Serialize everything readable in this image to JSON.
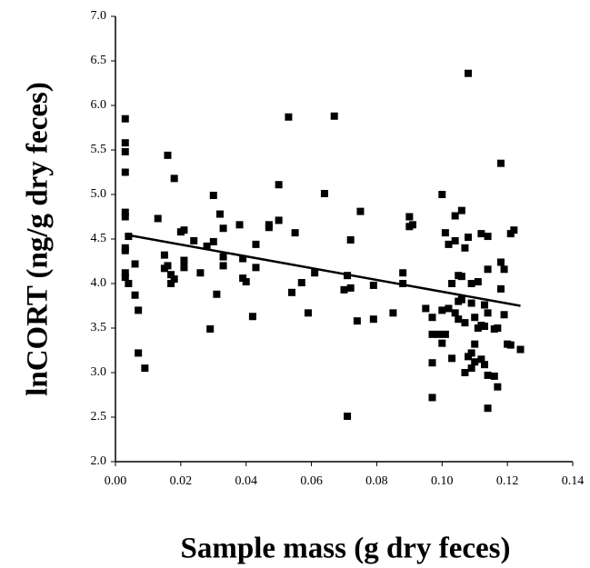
{
  "chart_data": {
    "type": "scatter",
    "x_label": "Sample mass (g dry feces)",
    "y_label": "lnCORT (ng/g dry feces)",
    "xlim": [
      0,
      0.14
    ],
    "ylim": [
      2,
      7
    ],
    "xticks": [
      {
        "value": 0,
        "label": "0.00"
      },
      {
        "value": 0.02,
        "label": "0.02"
      },
      {
        "value": 0.04,
        "label": "0.04"
      },
      {
        "value": 0.06,
        "label": "0.06"
      },
      {
        "value": 0.08,
        "label": "0.08"
      },
      {
        "value": 0.1,
        "label": "0.10"
      },
      {
        "value": 0.12,
        "label": "0.12"
      },
      {
        "value": 0.14,
        "label": "0.14"
      }
    ],
    "yticks": [
      {
        "value": 2,
        "label": "2.0"
      },
      {
        "value": 2.5,
        "label": "2.5"
      },
      {
        "value": 3,
        "label": "3.0"
      },
      {
        "value": 3.5,
        "label": "3.5"
      },
      {
        "value": 4,
        "label": "4.0"
      },
      {
        "value": 4.5,
        "label": "4.5"
      },
      {
        "value": 5,
        "label": "5.0"
      },
      {
        "value": 5.5,
        "label": "5.5"
      },
      {
        "value": 6,
        "label": "6.0"
      },
      {
        "value": 6.5,
        "label": "6.5"
      },
      {
        "value": 7,
        "label": "7.0"
      }
    ],
    "color": "#000000",
    "series": [
      {
        "color": "#000000",
        "x": [
          0.003,
          0.003,
          0.003,
          0.003,
          0.003,
          0.003,
          0.003,
          0.003,
          0.003,
          0.003,
          0.004,
          0.004,
          0.006,
          0.006,
          0.007,
          0.007,
          0.009,
          0.013,
          0.015,
          0.015,
          0.016,
          0.016,
          0.017,
          0.017,
          0.018,
          0.018,
          0.02,
          0.021,
          0.021,
          0.021,
          0.024,
          0.026,
          0.028,
          0.029,
          0.03,
          0.03,
          0.031,
          0.032,
          0.033,
          0.033,
          0.033,
          0.038,
          0.039,
          0.039,
          0.04,
          0.042,
          0.043,
          0.043,
          0.047,
          0.047,
          0.05,
          0.05,
          0.053,
          0.054,
          0.055,
          0.057,
          0.059,
          0.061,
          0.064,
          0.067,
          0.07,
          0.071,
          0.071,
          0.072,
          0.072,
          0.074,
          0.075,
          0.079,
          0.079,
          0.085,
          0.088,
          0.088,
          0.09,
          0.09,
          0.091,
          0.095,
          0.097,
          0.097,
          0.097,
          0.097,
          0.099,
          0.1,
          0.1,
          0.1,
          0.101,
          0.101,
          0.102,
          0.102,
          0.103,
          0.103,
          0.104,
          0.104,
          0.104,
          0.105,
          0.105,
          0.105,
          0.106,
          0.106,
          0.106,
          0.107,
          0.107,
          0.107,
          0.108,
          0.108,
          0.108,
          0.109,
          0.109,
          0.109,
          0.109,
          0.11,
          0.11,
          0.11,
          0.111,
          0.111,
          0.112,
          0.112,
          0.112,
          0.113,
          0.113,
          0.113,
          0.114,
          0.114,
          0.114,
          0.114,
          0.114,
          0.116,
          0.116,
          0.117,
          0.117,
          0.118,
          0.118,
          0.118,
          0.119,
          0.119,
          0.12,
          0.121,
          0.121,
          0.122,
          0.124
        ],
        "y": [
          5.85,
          5.58,
          5.48,
          5.25,
          4.8,
          4.75,
          4.4,
          4.37,
          4.12,
          4.07,
          4.0,
          4.53,
          4.22,
          3.87,
          3.22,
          3.7,
          3.05,
          4.73,
          4.17,
          4.32,
          5.44,
          4.2,
          4.0,
          4.1,
          5.18,
          4.05,
          4.58,
          4.26,
          4.6,
          4.18,
          4.48,
          4.12,
          4.42,
          3.49,
          4.99,
          4.47,
          3.88,
          4.78,
          4.62,
          4.3,
          4.2,
          4.66,
          4.06,
          4.28,
          4.02,
          3.63,
          4.44,
          4.18,
          4.66,
          4.63,
          5.11,
          4.71,
          5.87,
          3.9,
          4.57,
          4.01,
          3.67,
          4.12,
          5.01,
          5.88,
          3.93,
          2.51,
          4.09,
          4.49,
          3.95,
          3.58,
          4.81,
          3.6,
          3.98,
          3.67,
          4.12,
          4.0,
          4.75,
          4.64,
          4.66,
          3.72,
          2.72,
          3.43,
          3.11,
          3.62,
          3.43,
          5.0,
          3.33,
          3.7,
          4.57,
          3.43,
          4.44,
          3.72,
          4.0,
          3.16,
          4.76,
          4.48,
          3.67,
          4.09,
          3.8,
          3.6,
          4.82,
          4.08,
          3.82,
          4.4,
          3.56,
          3.0,
          6.36,
          4.52,
          3.18,
          4.0,
          3.78,
          3.22,
          3.05,
          3.62,
          3.32,
          3.12,
          4.02,
          3.5,
          4.56,
          3.53,
          3.15,
          3.76,
          3.52,
          3.09,
          4.53,
          4.16,
          3.67,
          2.97,
          2.6,
          3.49,
          2.96,
          3.5,
          2.84,
          5.35,
          4.24,
          3.94,
          4.16,
          3.65,
          3.32,
          4.56,
          3.31,
          4.6,
          3.26
        ]
      }
    ],
    "trendline": {
      "x": [
        0.003,
        0.124
      ],
      "y": [
        4.55,
        3.75
      ]
    }
  }
}
